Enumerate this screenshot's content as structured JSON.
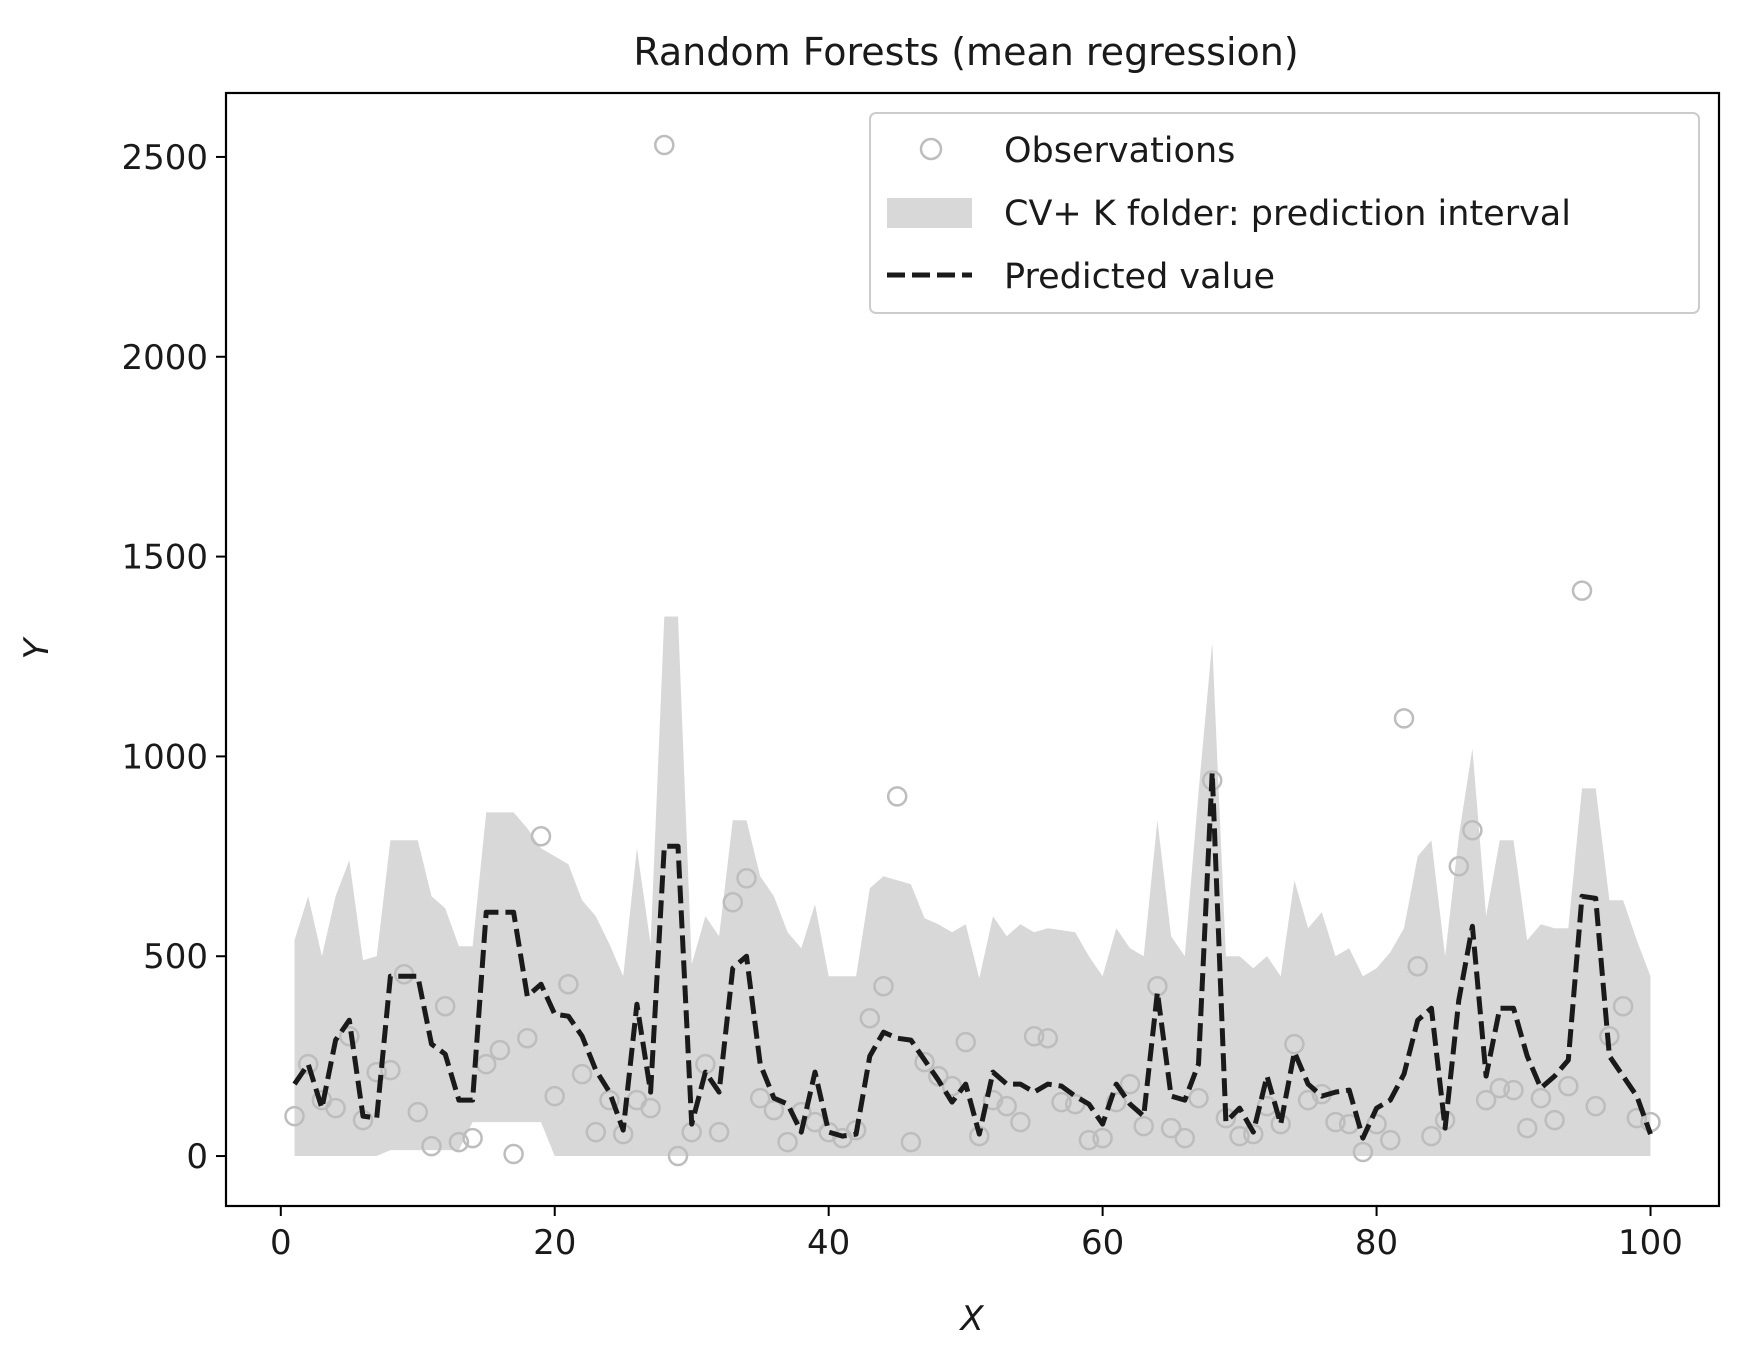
{
  "chart_data": {
    "type": "line",
    "title": "Random Forests (mean regression)",
    "xlabel": "X",
    "ylabel": "Y",
    "xlim": [
      -4,
      105
    ],
    "ylim": [
      -125,
      2660
    ],
    "xticks": [
      0,
      20,
      40,
      60,
      80,
      100
    ],
    "yticks": [
      0,
      500,
      1000,
      1500,
      2000,
      2500
    ],
    "grid": false,
    "legend": {
      "location": "top-right",
      "entries": [
        "Observations",
        "CV+ K folder: prediction interval",
        "Predicted value"
      ]
    },
    "colors": {
      "observations": "#bdbdbd",
      "interval": "#d8d8d8",
      "prediction": "#1a1a1a",
      "axis": "#000000"
    },
    "x": [
      1,
      2,
      3,
      4,
      5,
      6,
      7,
      8,
      9,
      10,
      11,
      12,
      13,
      14,
      15,
      16,
      17,
      18,
      19,
      20,
      21,
      22,
      23,
      24,
      25,
      26,
      27,
      28,
      29,
      30,
      31,
      32,
      33,
      34,
      35,
      36,
      37,
      38,
      39,
      40,
      41,
      42,
      43,
      44,
      45,
      46,
      47,
      48,
      49,
      50,
      51,
      52,
      53,
      54,
      55,
      56,
      57,
      58,
      59,
      60,
      61,
      62,
      63,
      64,
      65,
      66,
      67,
      68,
      69,
      70,
      71,
      72,
      73,
      74,
      75,
      76,
      77,
      78,
      79,
      80,
      81,
      82,
      83,
      84,
      85,
      86,
      87,
      88,
      89,
      90,
      91,
      92,
      93,
      94,
      95,
      96,
      97,
      98,
      99,
      100
    ],
    "series": [
      {
        "name": "Observations",
        "style": "hollow-circle",
        "values": [
          100,
          230,
          140,
          120,
          300,
          90,
          210,
          215,
          455,
          110,
          25,
          375,
          35,
          45,
          230,
          265,
          5,
          295,
          800,
          150,
          430,
          205,
          60,
          140,
          55,
          140,
          120,
          2530,
          0,
          60,
          230,
          60,
          635,
          695,
          145,
          115,
          35,
          110,
          85,
          60,
          45,
          65,
          345,
          425,
          900,
          35,
          235,
          200,
          175,
          285,
          50,
          140,
          125,
          85,
          300,
          295,
          135,
          130,
          40,
          45,
          135,
          180,
          75,
          425,
          70,
          45,
          145,
          940,
          95,
          50,
          55,
          125,
          80,
          280,
          140,
          155,
          85,
          80,
          10,
          80,
          40,
          1095,
          475,
          50,
          90,
          725,
          815,
          140,
          170,
          165,
          70,
          145,
          90,
          175,
          1415,
          125,
          300,
          375,
          95,
          85
        ]
      },
      {
        "name": "CV+ K folder: prediction interval",
        "style": "filled-band",
        "lower": [
          0,
          0,
          0,
          0,
          0,
          0,
          0,
          15,
          15,
          15,
          15,
          15,
          15,
          85,
          85,
          85,
          85,
          85,
          85,
          0,
          0,
          0,
          0,
          0,
          0,
          0,
          0,
          0,
          0,
          0,
          0,
          0,
          0,
          0,
          0,
          0,
          0,
          0,
          0,
          0,
          0,
          0,
          0,
          0,
          0,
          0,
          0,
          0,
          0,
          0,
          0,
          0,
          0,
          0,
          0,
          0,
          0,
          0,
          0,
          0,
          0,
          0,
          0,
          0,
          0,
          0,
          0,
          0,
          0,
          0,
          0,
          0,
          0,
          0,
          0,
          0,
          0,
          0,
          0,
          0,
          0,
          0,
          0,
          0,
          0,
          0,
          0,
          0,
          0,
          0,
          0,
          0,
          0,
          0,
          0,
          0,
          0,
          0,
          0,
          0
        ],
        "upper": [
          540,
          650,
          500,
          650,
          740,
          490,
          500,
          790,
          790,
          790,
          650,
          620,
          525,
          525,
          860,
          860,
          860,
          820,
          770,
          750,
          730,
          640,
          600,
          530,
          450,
          770,
          530,
          1350,
          1350,
          480,
          600,
          550,
          840,
          840,
          700,
          650,
          560,
          520,
          630,
          450,
          450,
          450,
          670,
          700,
          690,
          680,
          595,
          580,
          560,
          580,
          445,
          600,
          550,
          580,
          560,
          570,
          565,
          560,
          500,
          450,
          570,
          520,
          500,
          840,
          550,
          500,
          910,
          1285,
          500,
          500,
          470,
          500,
          450,
          690,
          570,
          610,
          500,
          520,
          450,
          470,
          510,
          570,
          750,
          790,
          500,
          800,
          1020,
          600,
          790,
          790,
          540,
          580,
          570,
          570,
          920,
          920,
          640,
          640,
          540,
          450
        ]
      },
      {
        "name": "Predicted value",
        "style": "dashed-line",
        "values": [
          180,
          230,
          120,
          290,
          340,
          100,
          95,
          450,
          450,
          450,
          280,
          255,
          140,
          140,
          610,
          610,
          610,
          400,
          430,
          355,
          350,
          300,
          215,
          160,
          65,
          380,
          160,
          775,
          775,
          80,
          210,
          160,
          470,
          500,
          230,
          145,
          130,
          60,
          210,
          60,
          50,
          55,
          250,
          310,
          295,
          290,
          240,
          190,
          135,
          180,
          55,
          210,
          180,
          180,
          160,
          180,
          175,
          150,
          130,
          80,
          180,
          130,
          100,
          410,
          150,
          140,
          230,
          960,
          85,
          120,
          60,
          200,
          80,
          260,
          180,
          150,
          160,
          165,
          45,
          120,
          140,
          205,
          340,
          370,
          70,
          390,
          575,
          200,
          370,
          370,
          250,
          170,
          200,
          240,
          650,
          645,
          250,
          200,
          150,
          55
        ]
      }
    ]
  }
}
